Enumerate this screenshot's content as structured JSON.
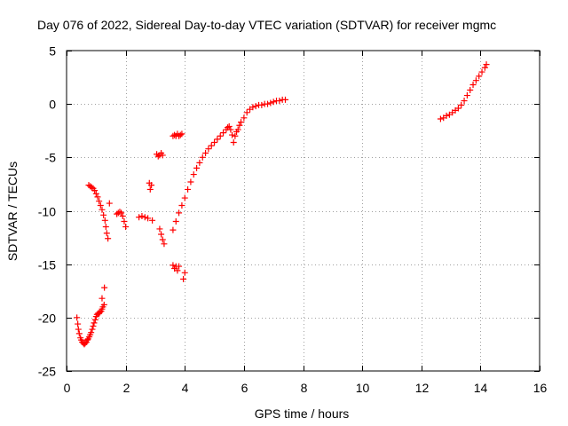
{
  "chart_data": {
    "type": "scatter",
    "title": "Day 076 of 2022, Sidereal Day-to-day VTEC variation (SDTVAR) for receiver mgmc",
    "xlabel": "GPS time / hours",
    "ylabel": "SDTVAR / TECUs",
    "xlim": [
      0,
      16
    ],
    "ylim": [
      -25,
      5
    ],
    "x_ticks": [
      0,
      2,
      4,
      6,
      8,
      10,
      12,
      14,
      16
    ],
    "y_ticks": [
      -25,
      -20,
      -15,
      -10,
      -5,
      0,
      5
    ],
    "grid": true,
    "marker": "+",
    "marker_color": "#ff0000",
    "series": [
      {
        "name": "SDTVAR",
        "points": [
          [
            0.35,
            -20.0
          ],
          [
            0.38,
            -20.6
          ],
          [
            0.4,
            -21.1
          ],
          [
            0.43,
            -21.5
          ],
          [
            0.47,
            -21.9
          ],
          [
            0.5,
            -22.1
          ],
          [
            0.53,
            -22.3
          ],
          [
            0.57,
            -22.4
          ],
          [
            0.6,
            -22.5
          ],
          [
            0.63,
            -22.4
          ],
          [
            0.67,
            -22.3
          ],
          [
            0.7,
            -22.1
          ],
          [
            0.73,
            -22.0
          ],
          [
            0.77,
            -21.8
          ],
          [
            0.8,
            -21.6
          ],
          [
            0.83,
            -21.4
          ],
          [
            0.87,
            -21.1
          ],
          [
            0.9,
            -20.8
          ],
          [
            0.93,
            -20.5
          ],
          [
            0.97,
            -20.2
          ],
          [
            1.0,
            -19.9
          ],
          [
            1.03,
            -19.7
          ],
          [
            1.07,
            -19.6
          ],
          [
            1.1,
            -19.6
          ],
          [
            1.13,
            -19.5
          ],
          [
            1.17,
            -19.4
          ],
          [
            1.2,
            -19.2
          ],
          [
            1.23,
            -19.0
          ],
          [
            1.27,
            -18.8
          ],
          [
            1.2,
            -18.2
          ],
          [
            1.28,
            -17.2
          ],
          [
            0.75,
            -7.6
          ],
          [
            0.8,
            -7.7
          ],
          [
            0.85,
            -7.8
          ],
          [
            0.9,
            -7.9
          ],
          [
            0.95,
            -8.1
          ],
          [
            1.0,
            -8.4
          ],
          [
            1.05,
            -8.7
          ],
          [
            1.1,
            -9.1
          ],
          [
            1.15,
            -9.5
          ],
          [
            1.2,
            -9.9
          ],
          [
            1.25,
            -10.4
          ],
          [
            1.3,
            -10.9
          ],
          [
            1.33,
            -11.5
          ],
          [
            1.36,
            -12.1
          ],
          [
            1.4,
            -12.6
          ],
          [
            1.45,
            -9.3
          ],
          [
            1.7,
            -10.3
          ],
          [
            1.75,
            -10.2
          ],
          [
            1.8,
            -10.1
          ],
          [
            1.85,
            -10.2
          ],
          [
            1.9,
            -10.5
          ],
          [
            1.95,
            -11.0
          ],
          [
            2.0,
            -11.5
          ],
          [
            2.45,
            -10.6
          ],
          [
            2.55,
            -10.5
          ],
          [
            2.65,
            -10.6
          ],
          [
            2.75,
            -10.7
          ],
          [
            2.8,
            -7.4
          ],
          [
            2.83,
            -8.0
          ],
          [
            2.87,
            -7.6
          ],
          [
            2.9,
            -10.9
          ],
          [
            3.05,
            -4.7
          ],
          [
            3.1,
            -4.9
          ],
          [
            3.15,
            -4.8
          ],
          [
            3.2,
            -4.6
          ],
          [
            3.25,
            -4.8
          ],
          [
            3.15,
            -11.7
          ],
          [
            3.2,
            -12.2
          ],
          [
            3.25,
            -12.7
          ],
          [
            3.3,
            -13.1
          ],
          [
            3.6,
            -3.0
          ],
          [
            3.65,
            -2.9
          ],
          [
            3.7,
            -3.0
          ],
          [
            3.75,
            -2.8
          ],
          [
            3.8,
            -3.0
          ],
          [
            3.85,
            -2.9
          ],
          [
            3.9,
            -2.8
          ],
          [
            3.6,
            -15.1
          ],
          [
            3.65,
            -15.4
          ],
          [
            3.7,
            -15.2
          ],
          [
            3.75,
            -15.6
          ],
          [
            3.8,
            -15.2
          ],
          [
            3.95,
            -16.4
          ],
          [
            4.0,
            -15.8
          ],
          [
            3.6,
            -11.8
          ],
          [
            3.7,
            -11.0
          ],
          [
            3.8,
            -10.2
          ],
          [
            3.9,
            -9.5
          ],
          [
            4.0,
            -8.8
          ],
          [
            4.1,
            -8.0
          ],
          [
            4.2,
            -7.3
          ],
          [
            4.3,
            -6.6
          ],
          [
            4.4,
            -6.0
          ],
          [
            4.5,
            -5.5
          ],
          [
            4.6,
            -5.0
          ],
          [
            4.7,
            -4.6
          ],
          [
            4.8,
            -4.2
          ],
          [
            4.9,
            -3.9
          ],
          [
            5.0,
            -3.6
          ],
          [
            5.1,
            -3.3
          ],
          [
            5.2,
            -3.0
          ],
          [
            5.3,
            -2.7
          ],
          [
            5.4,
            -2.4
          ],
          [
            5.45,
            -2.2
          ],
          [
            5.5,
            -2.1
          ],
          [
            5.55,
            -2.4
          ],
          [
            5.6,
            -2.9
          ],
          [
            5.65,
            -3.6
          ],
          [
            5.7,
            -3.0
          ],
          [
            5.75,
            -2.6
          ],
          [
            5.8,
            -2.4
          ],
          [
            5.85,
            -2.0
          ],
          [
            5.9,
            -1.7
          ],
          [
            6.0,
            -1.3
          ],
          [
            6.1,
            -0.8
          ],
          [
            6.2,
            -0.5
          ],
          [
            6.3,
            -0.3
          ],
          [
            6.4,
            -0.2
          ],
          [
            6.5,
            -0.1
          ],
          [
            6.6,
            -0.1
          ],
          [
            6.7,
            0.0
          ],
          [
            6.8,
            0.0
          ],
          [
            6.9,
            0.1
          ],
          [
            7.0,
            0.2
          ],
          [
            7.1,
            0.3
          ],
          [
            7.2,
            0.3
          ],
          [
            7.3,
            0.4
          ],
          [
            7.4,
            0.4
          ],
          [
            12.65,
            -1.4
          ],
          [
            12.75,
            -1.3
          ],
          [
            12.85,
            -1.1
          ],
          [
            12.95,
            -1.0
          ],
          [
            13.05,
            -0.8
          ],
          [
            13.15,
            -0.6
          ],
          [
            13.25,
            -0.4
          ],
          [
            13.35,
            -0.1
          ],
          [
            13.45,
            0.3
          ],
          [
            13.55,
            0.8
          ],
          [
            13.65,
            1.3
          ],
          [
            13.75,
            1.8
          ],
          [
            13.85,
            2.2
          ],
          [
            13.95,
            2.6
          ],
          [
            14.05,
            3.0
          ],
          [
            14.15,
            3.4
          ],
          [
            14.2,
            3.7
          ]
        ]
      }
    ]
  }
}
